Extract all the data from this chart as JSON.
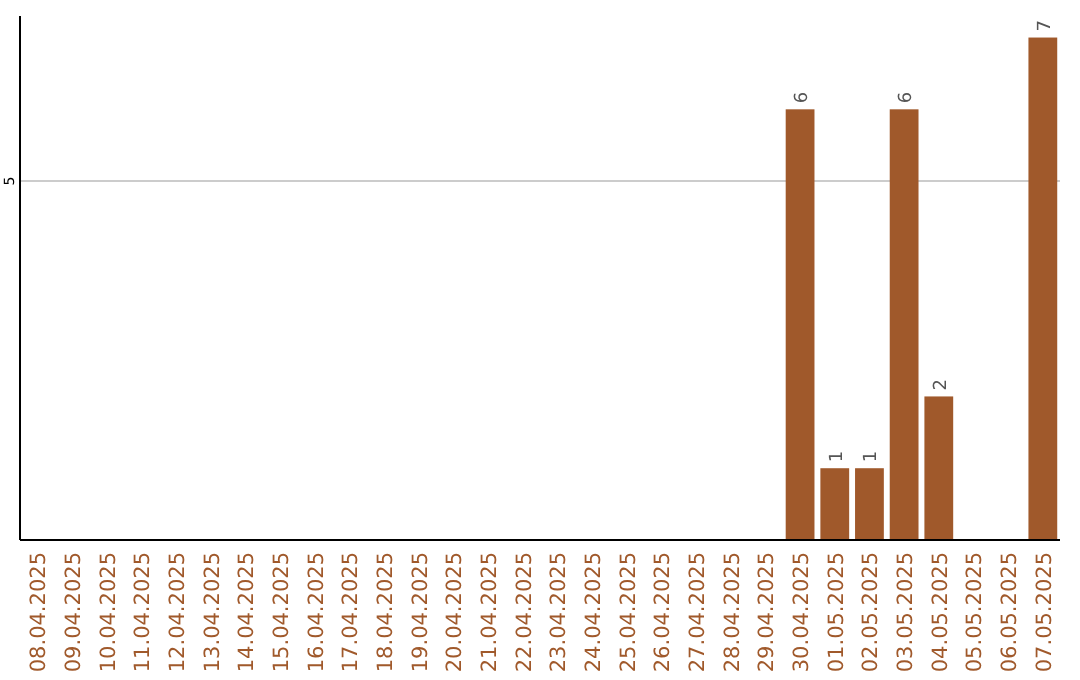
{
  "chart_data": {
    "type": "bar",
    "categories": [
      "08.04.2025",
      "09.04.2025",
      "10.04.2025",
      "11.04.2025",
      "12.04.2025",
      "13.04.2025",
      "14.04.2025",
      "15.04.2025",
      "16.04.2025",
      "17.04.2025",
      "18.04.2025",
      "19.04.2025",
      "20.04.2025",
      "21.04.2025",
      "22.04.2025",
      "23.04.2025",
      "24.04.2025",
      "25.04.2025",
      "26.04.2025",
      "27.04.2025",
      "28.04.2025",
      "29.04.2025",
      "30.04.2025",
      "01.05.2025",
      "02.05.2025",
      "03.05.2025",
      "04.05.2025",
      "05.05.2025",
      "06.05.2025",
      "07.05.2025"
    ],
    "values": [
      null,
      null,
      null,
      null,
      null,
      null,
      null,
      null,
      null,
      null,
      null,
      null,
      null,
      null,
      null,
      null,
      null,
      null,
      null,
      null,
      null,
      null,
      6,
      1,
      1,
      6,
      2,
      null,
      null,
      7
    ],
    "data_labels": true,
    "ylim": [
      0,
      7.3
    ],
    "color": "#a0592b",
    "ref_lines": [
      {
        "axis": "y",
        "value": 5,
        "label": "5",
        "color": "#cccccc"
      }
    ]
  }
}
